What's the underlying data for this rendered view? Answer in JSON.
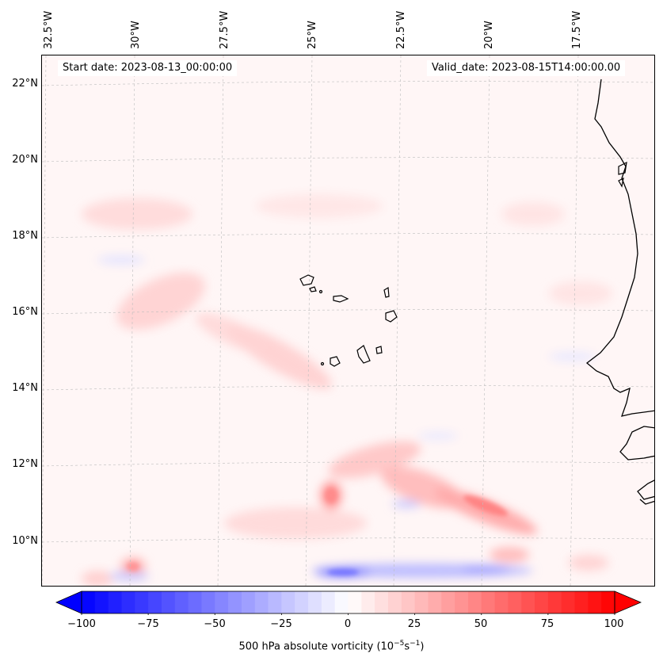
{
  "header": {
    "start_date": "Start date: 2023-08-13_00:00:00",
    "valid_date": "Valid_date: 2023-08-15T14:00:00.00"
  },
  "longitude_labels": [
    "32.5°W",
    "30°W",
    "27.5°W",
    "25°W",
    "22.5°W",
    "20°W",
    "17.5°W"
  ],
  "latitude_labels": [
    "22°N",
    "20°N",
    "18°N",
    "16°N",
    "14°N",
    "12°N",
    "10°N"
  ],
  "colorbar": {
    "ticks": [
      "−100",
      "−75",
      "−50",
      "−25",
      "0",
      "25",
      "50",
      "75",
      "100"
    ],
    "caption": "500 hPa absolute vorticity (10",
    "caption_exp1": "−5",
    "caption_mid": "s",
    "caption_exp2": "−1",
    "caption_end": ")",
    "min": -100,
    "max": 100,
    "colors": {
      "neg": "#0000ff",
      "zero": "#ffffff",
      "pos": "#ff0000"
    }
  },
  "chart_data": {
    "type": "heatmap",
    "variable": "500 hPa absolute vorticity",
    "units": "10^-5 s^-1",
    "lon_range": [
      -32.5,
      -15.5
    ],
    "lat_range": [
      8.8,
      22.8
    ],
    "vmin": -100,
    "vmax": 100,
    "features": [
      {
        "name": "band-south-blue",
        "lon": -21.5,
        "lat": 9.3,
        "value": -40
      },
      {
        "name": "red-streak-east",
        "lon": -20.5,
        "lat": 11.0,
        "value": 55
      },
      {
        "name": "red-streak-center",
        "lon": -23.0,
        "lat": 11.8,
        "value": 40
      },
      {
        "name": "red-west-blob",
        "lon": -24.7,
        "lat": 11.3,
        "value": 45
      },
      {
        "name": "red-nw-band",
        "lon": -29.5,
        "lat": 16.2,
        "value": 25
      },
      {
        "name": "red-mid-band",
        "lon": -26.0,
        "lat": 15.3,
        "value": 25
      },
      {
        "name": "red-southwest",
        "lon": -31.0,
        "lat": 9.4,
        "value": 35
      }
    ]
  }
}
